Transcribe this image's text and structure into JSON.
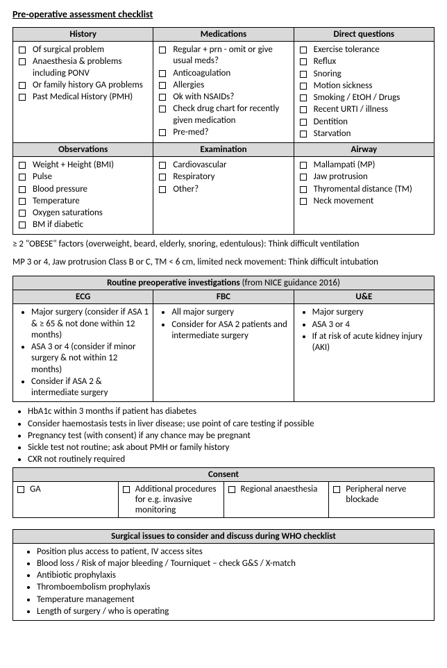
{
  "title": "Pre-operative assessment checklist",
  "section1": {
    "headers": [
      "History",
      "Medications",
      "Direct questions"
    ],
    "history": [
      "Of surgical problem",
      "Anaesthesia & problems including  PONV",
      "Or family history GA problems",
      "Past Medical History (PMH)"
    ],
    "medications": [
      "Regular + prn - omit or give usual meds?",
      "Anticoagulation",
      "Allergies",
      "Ok with NSAIDs?",
      "Check drug chart for recently given medication",
      "Pre-med?"
    ],
    "direct": [
      "Exercise tolerance",
      "Reflux",
      "Snoring",
      "Motion sickness",
      "Smoking / EtOH / Drugs",
      "Recent URTI / illness",
      "Dentition",
      "Starvation"
    ],
    "headers2": [
      "Observations",
      "Examination",
      "Airway"
    ],
    "observations": [
      "Weight + Height (BMI)",
      "Pulse",
      "Blood pressure",
      "Temperature",
      "Oxygen saturations",
      "BM if diabetic"
    ],
    "examination": [
      "Cardiovascular",
      "Respiratory",
      "Other?"
    ],
    "airway": [
      "Mallampati (MP)",
      "Jaw protrusion",
      "Thyromental distance (TM)",
      "Neck movement"
    ]
  },
  "note1": "≥ 2 \"OBESE\" factors (overweight, beard, elderly, snoring, edentulous):  Think difficult ventilation",
  "note2": "MP 3 or 4, Jaw protrusion Class B or C, TM < 6 cm, limited neck movement: Think difficult intubation",
  "section2": {
    "title_bold": "Routine preoperative investigations",
    "title_rest": " (from NICE guidance 2016)",
    "headers": [
      "ECG",
      "FBC",
      "U&E"
    ],
    "ecg": [
      "Major surgery (consider if ASA 1 & ≥ 65 & not done within 12 months)",
      "ASA 3 or 4 (consider if minor surgery & not within 12 months)",
      "Consider if ASA 2 & intermediate surgery"
    ],
    "fbc": [
      "All major surgery",
      "Consider for ASA 2 patients and intermediate surgery"
    ],
    "ue": [
      "Major surgery",
      "ASA 3 or 4",
      "If at risk of acute kidney injury (AKI)"
    ],
    "extras": [
      "HbA1c within 3 months if patient has diabetes",
      "Consider haemostasis tests in liver disease; use point of care testing if possible",
      "Pregnancy test  (with consent) if any chance may be pregnant",
      "Sickle test not routine; ask about PMH or family history",
      "CXR not routinely required"
    ]
  },
  "consent": {
    "header": "Consent",
    "items": [
      "GA",
      "Additional procedures for e.g. invasive monitoring",
      "Regional anaesthesia",
      "Peripheral nerve blockade"
    ]
  },
  "surgical": {
    "header": "Surgical issues to consider and discuss during WHO checklist",
    "items": [
      "Position plus access to patient, IV access sites",
      "Blood loss / Risk of major bleeding / Tourniquet – check G&S / X-match",
      "Antibiotic prophylaxis",
      "Thromboembolism prophylaxis",
      "Temperature management",
      "Length of surgery / who is operating"
    ]
  }
}
